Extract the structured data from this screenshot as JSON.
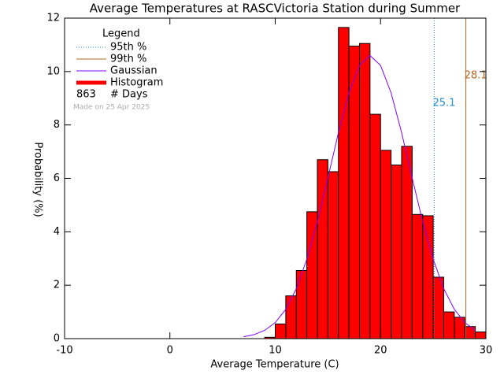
{
  "chart_data": {
    "type": "histogram",
    "title": "Average Temperatures at RASCVictoria Station during Summer",
    "xlabel": "Average Temperature (C)",
    "ylabel": "Probability (%)",
    "bins": [
      9,
      10,
      11,
      12,
      13,
      14,
      15,
      16,
      17,
      18,
      19,
      20,
      21,
      22,
      23,
      24,
      25,
      26,
      27,
      28,
      29,
      30
    ],
    "counts": [
      0.05,
      0.55,
      1.6,
      2.55,
      4.75,
      6.7,
      6.25,
      11.65,
      10.95,
      11.05,
      8.4,
      7.05,
      6.5,
      7.2,
      4.65,
      4.6,
      2.3,
      1.0,
      0.8,
      0.45,
      0.25
    ],
    "color": "#ff0000",
    "name": "Histogram",
    "gaussian": {
      "name": "Gaussian",
      "color": "#7f00ff",
      "x": [
        7,
        8,
        9,
        10,
        11,
        12,
        13,
        14,
        15,
        16,
        17,
        18,
        19,
        20,
        21,
        22,
        23,
        24,
        25,
        26,
        27,
        28,
        29
      ],
      "values": [
        0.07,
        0.15,
        0.31,
        0.6,
        1.1,
        1.87,
        2.97,
        4.38,
        6.02,
        7.71,
        9.2,
        10.23,
        10.6,
        10.23,
        9.2,
        7.71,
        6.02,
        4.38,
        2.97,
        1.87,
        1.1,
        0.6,
        0.31
      ]
    },
    "percentiles": [
      {
        "name": "95th %",
        "value": 25.1,
        "color": "#1f8fd6",
        "dash": true
      },
      {
        "name": "99th %",
        "value": 28.1,
        "color": "#b5651d",
        "dash": false
      }
    ],
    "legend_title": "Legend",
    "days": 863,
    "days_label": "# Days",
    "note": "Made on 25 Apr 2025",
    "xlim": [
      -10,
      30
    ],
    "xticks": [
      -10,
      0,
      10,
      20,
      30
    ],
    "ylim": [
      0,
      12
    ],
    "yticks": [
      0,
      2,
      4,
      6,
      8,
      10,
      12
    ]
  }
}
